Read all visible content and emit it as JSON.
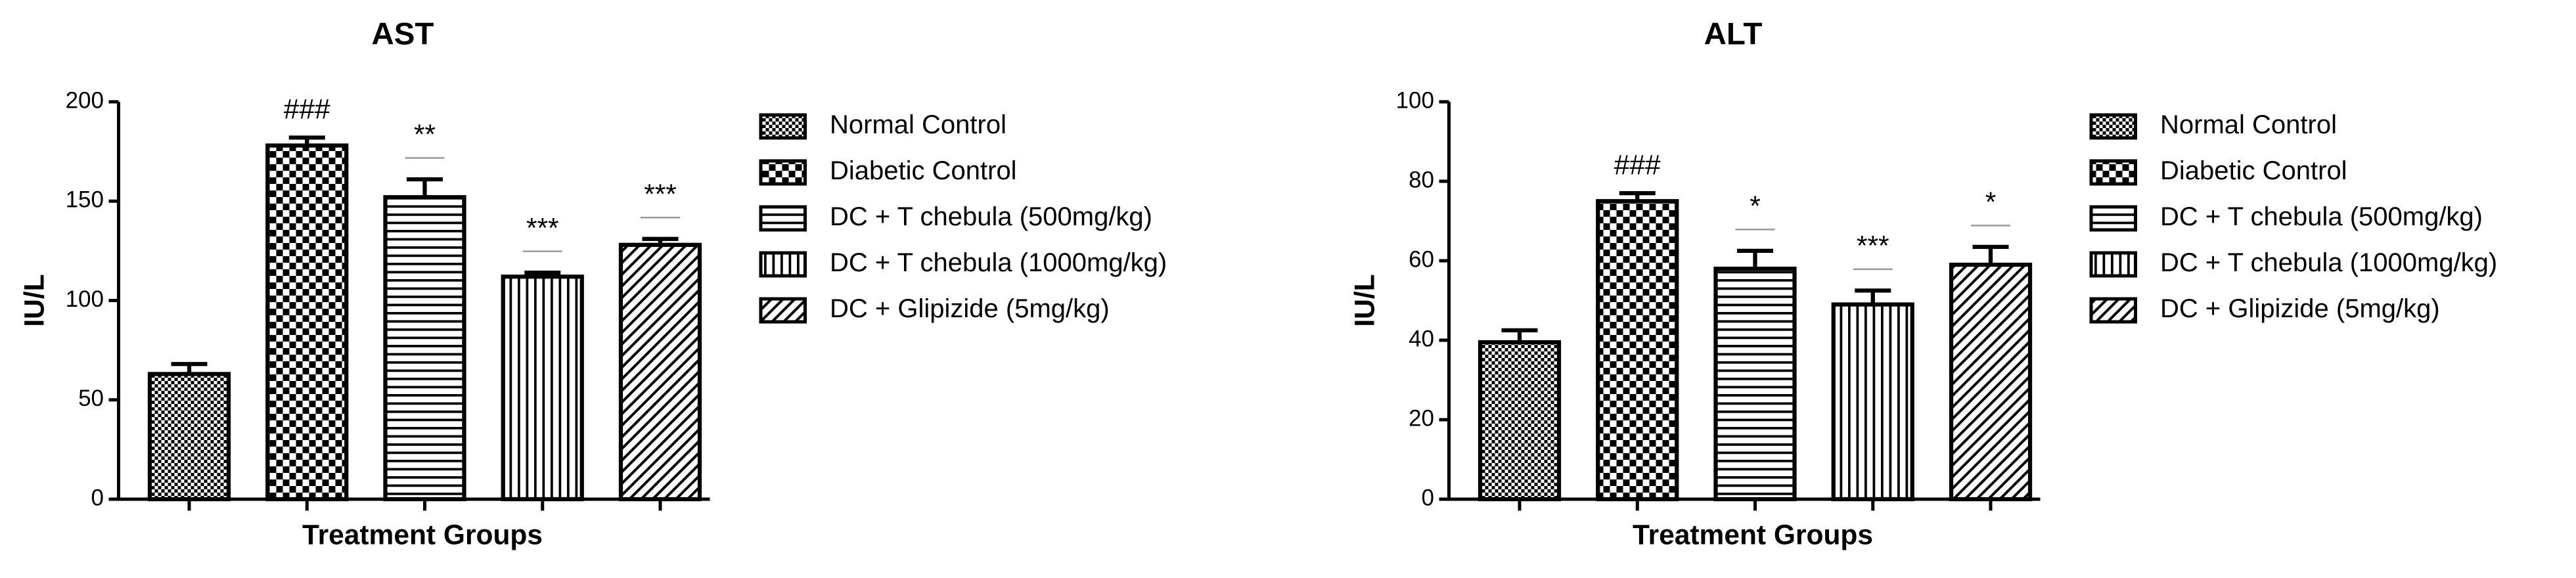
{
  "chart_data": [
    {
      "type": "bar",
      "title": "AST",
      "ylabel": "IU/L",
      "xlabel": "Treatment Groups",
      "categories": [
        "Normal Control",
        "Diabetic Control",
        "DC + T chebula (500mg/kg)",
        "DC + T chebula (1000mg/kg)",
        "DC + Glipizide (5mg/kg)"
      ],
      "values": [
        63,
        178,
        152,
        112,
        128
      ],
      "errors": [
        5,
        4,
        9,
        2,
        3
      ],
      "annotations": [
        null,
        "###",
        "**",
        "***",
        "***"
      ],
      "ylim": [
        0,
        200
      ],
      "yticks": [
        0,
        50,
        100,
        150,
        200
      ],
      "color": "#000000"
    },
    {
      "type": "bar",
      "title": "ALT",
      "ylabel": "IU/L",
      "xlabel": "Treatment Groups",
      "categories": [
        "Normal Control",
        "Diabetic Control",
        "DC + T chebula (500mg/kg)",
        "DC + T chebula (1000mg/kg)",
        "DC + Glipizide (5mg/kg)"
      ],
      "values": [
        39.5,
        75,
        58,
        49,
        59
      ],
      "errors": [
        3,
        2,
        4.5,
        3.5,
        4.5
      ],
      "annotations": [
        null,
        "###",
        "*",
        "***",
        "*"
      ],
      "ylim": [
        0,
        100
      ],
      "yticks": [
        0,
        20,
        40,
        60,
        80,
        100
      ],
      "color": "#000000"
    }
  ]
}
